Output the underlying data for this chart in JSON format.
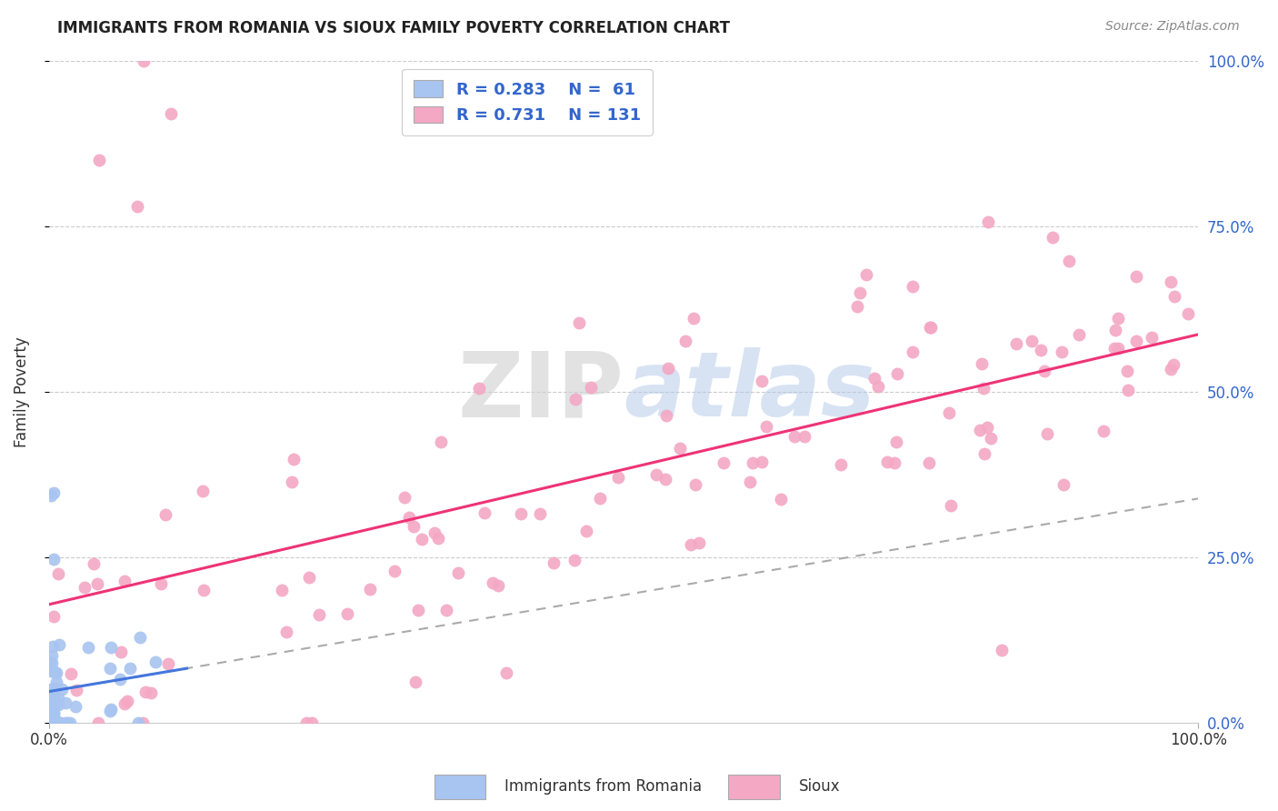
{
  "title": "IMMIGRANTS FROM ROMANIA VS SIOUX FAMILY POVERTY CORRELATION CHART",
  "source": "Source: ZipAtlas.com",
  "ylabel": "Family Poverty",
  "romania_color": "#a8c4f0",
  "sioux_color": "#f4a8c4",
  "romania_line_color": "#4477dd",
  "sioux_line_color": "#ee3377",
  "dashed_line_color": "#aaaaaa",
  "watermark_zip": "#cccccc",
  "watermark_atlas": "#b8cce4",
  "background_color": "#ffffff",
  "legend_r_romania": "0.283",
  "legend_n_romania": "61",
  "legend_r_sioux": "0.731",
  "legend_n_sioux": "131"
}
